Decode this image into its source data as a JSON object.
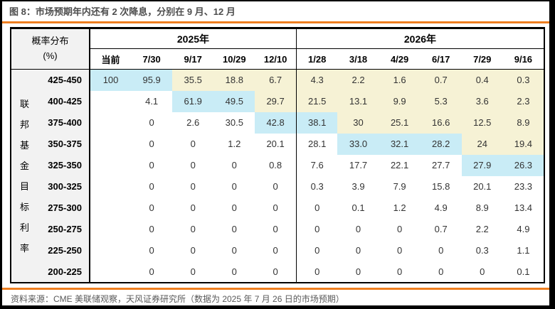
{
  "title": "图 8：市场预期年内还有 2 次降息，分别在 9 月、12 月",
  "source_note": "资料来源：CME 美联储观察，天风证券研究所（数据为 2025 年 7 月 26 日的市场预期）",
  "colors": {
    "accent_orange": "#ee7e20",
    "highlight_blue": "#c9ecf6",
    "highlight_yellow": "#f6f2d5",
    "rowheader_gray": "#f2f2f2",
    "title_gray": "#4d4d4d"
  },
  "table": {
    "corner": {
      "line1": "概率分布",
      "line2": "(%)"
    },
    "side_label": "联邦基金目标利率",
    "year_groups": [
      {
        "label": "2025年",
        "span": 5
      },
      {
        "label": "2026年",
        "span": 6
      }
    ],
    "date_columns": [
      "当前",
      "7/30",
      "9/17",
      "10/29",
      "12/10",
      "1/28",
      "3/18",
      "4/29",
      "6/17",
      "7/29",
      "9/16"
    ],
    "rows": [
      {
        "range": "425-450",
        "values": [
          "100",
          "95.9",
          "35.5",
          "18.8",
          "6.7",
          "4.3",
          "2.2",
          "1.6",
          "0.7",
          "0.4",
          "0.3"
        ],
        "cell_styles": [
          "blue",
          "blue",
          "yellow",
          "yellow",
          "yellow",
          "yellow",
          "yellow",
          "yellow",
          "yellow",
          "yellow",
          "yellow"
        ]
      },
      {
        "range": "400-425",
        "values": [
          "",
          "4.1",
          "61.9",
          "49.5",
          "29.7",
          "21.5",
          "13.1",
          "9.9",
          "5.3",
          "3.6",
          "2.3"
        ],
        "cell_styles": [
          "white",
          "white",
          "blue",
          "blue",
          "yellow",
          "yellow",
          "yellow",
          "yellow",
          "yellow",
          "yellow",
          "yellow"
        ]
      },
      {
        "range": "375-400",
        "values": [
          "",
          "0",
          "2.6",
          "30.5",
          "42.8",
          "38.1",
          "30",
          "25.1",
          "16.6",
          "12.5",
          "8.9"
        ],
        "cell_styles": [
          "white",
          "white",
          "white",
          "white",
          "blue",
          "blue",
          "yellow",
          "yellow",
          "yellow",
          "yellow",
          "yellow"
        ]
      },
      {
        "range": "350-375",
        "values": [
          "",
          "0",
          "0",
          "1.2",
          "20.1",
          "28.1",
          "33.0",
          "32.1",
          "28.2",
          "24",
          "19.4"
        ],
        "cell_styles": [
          "white",
          "white",
          "white",
          "white",
          "white",
          "white",
          "blue",
          "blue",
          "blue",
          "yellow",
          "yellow"
        ]
      },
      {
        "range": "325-350",
        "values": [
          "",
          "0",
          "0",
          "0",
          "0.8",
          "7.6",
          "17.7",
          "22.1",
          "27.7",
          "27.9",
          "26.3"
        ],
        "cell_styles": [
          "white",
          "white",
          "white",
          "white",
          "white",
          "white",
          "white",
          "white",
          "white",
          "blue",
          "blue"
        ]
      },
      {
        "range": "300-325",
        "values": [
          "",
          "0",
          "0",
          "0",
          "0",
          "0.3",
          "3.9",
          "7.9",
          "15.8",
          "20.1",
          "23.3"
        ],
        "cell_styles": [
          "white",
          "white",
          "white",
          "white",
          "white",
          "white",
          "white",
          "white",
          "white",
          "white",
          "white"
        ]
      },
      {
        "range": "275-300",
        "values": [
          "",
          "0",
          "0",
          "0",
          "0",
          "0",
          "0.1",
          "1.2",
          "4.9",
          "8.9",
          "13.4"
        ],
        "cell_styles": [
          "white",
          "white",
          "white",
          "white",
          "white",
          "white",
          "white",
          "white",
          "white",
          "white",
          "white"
        ]
      },
      {
        "range": "250-275",
        "values": [
          "",
          "0",
          "0",
          "0",
          "0",
          "0",
          "0",
          "0",
          "0.7",
          "2.2",
          "4.9"
        ],
        "cell_styles": [
          "white",
          "white",
          "white",
          "white",
          "white",
          "white",
          "white",
          "white",
          "white",
          "white",
          "white"
        ]
      },
      {
        "range": "225-250",
        "values": [
          "",
          "0",
          "0",
          "0",
          "0",
          "0",
          "0",
          "0",
          "0",
          "0.3",
          "1.1"
        ],
        "cell_styles": [
          "white",
          "white",
          "white",
          "white",
          "white",
          "white",
          "white",
          "white",
          "white",
          "white",
          "white"
        ]
      },
      {
        "range": "200-225",
        "values": [
          "",
          "0",
          "0",
          "0",
          "0",
          "0",
          "0",
          "0",
          "0",
          "0",
          "0.1"
        ],
        "cell_styles": [
          "white",
          "white",
          "white",
          "white",
          "white",
          "white",
          "white",
          "white",
          "white",
          "white",
          "white"
        ]
      }
    ]
  }
}
